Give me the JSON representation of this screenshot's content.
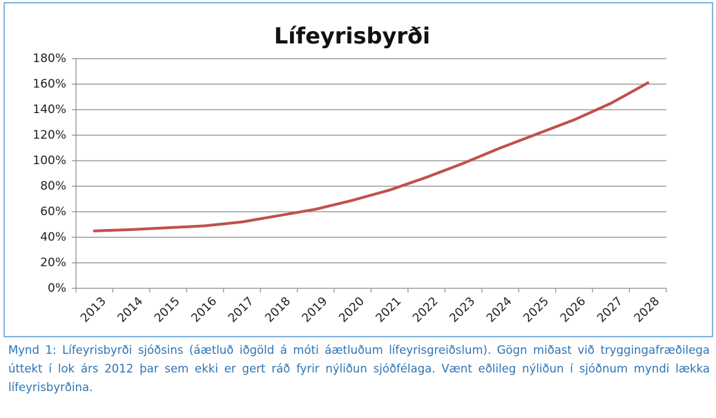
{
  "chart_data": {
    "type": "line",
    "title": "Lífeyrisbyrði",
    "categories": [
      "2013",
      "2014",
      "2015",
      "2016",
      "2017",
      "2018",
      "2019",
      "2020",
      "2021",
      "2022",
      "2023",
      "2024",
      "2025",
      "2026",
      "2027",
      "2028"
    ],
    "series": [
      {
        "name": "Lífeyrisbyrði",
        "color": "#c0504d",
        "values": [
          45,
          46,
          47.5,
          49,
          52,
          57,
          62,
          69,
          77,
          87,
          98,
          110,
          121,
          132,
          145,
          161
        ]
      }
    ],
    "ylim": [
      0,
      180
    ],
    "yticks": [
      {
        "value": 0,
        "label": "0%"
      },
      {
        "value": 20,
        "label": "20%"
      },
      {
        "value": 40,
        "label": "40%"
      },
      {
        "value": 60,
        "label": "60%"
      },
      {
        "value": 80,
        "label": "80%"
      },
      {
        "value": 100,
        "label": "100%"
      },
      {
        "value": 120,
        "label": "120%"
      },
      {
        "value": 140,
        "label": "140%"
      },
      {
        "value": 160,
        "label": "160%"
      },
      {
        "value": 180,
        "label": "180%"
      }
    ],
    "grid": true,
    "legend": false,
    "caption": "Mynd 1: Lífeyrisbyrði sjóðsins (áætluð iðgöld á móti áætluðum lífeyrisgreiðslum).  Gögn miðast við tryggingafræðilega úttekt í lok árs 2012 þar sem ekki er gert ráð fyrir nýliðun sjóðfélaga.  Vænt eðlileg nýliðun í sjóðnum myndi lækka lífeyrisbyrðina."
  }
}
